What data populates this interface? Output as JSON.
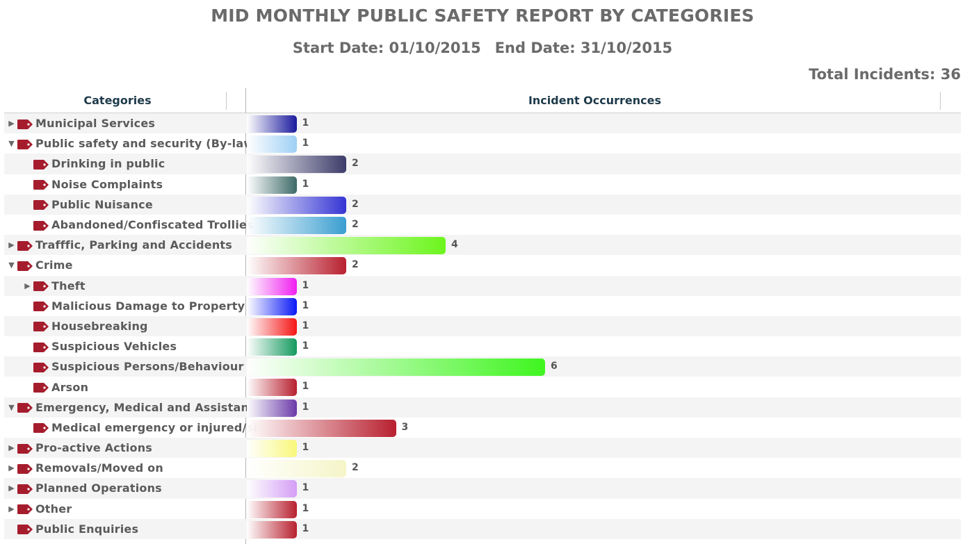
{
  "header": {
    "title": "MID MONTHLY PUBLIC SAFETY REPORT BY CATEGORIES",
    "start_date": "Start Date: 01/10/2015",
    "end_date": "End Date: 31/10/2015",
    "total": "Total Incidents: 36"
  },
  "columns": {
    "categories": "Categories",
    "occurrences": "Incident Occurrences"
  },
  "chart_data": {
    "type": "bar",
    "orientation": "horizontal",
    "xlim": [
      0,
      18
    ],
    "categories": [
      "Municipal Services",
      "Public safety and security (By-laws)",
      "Drinking in public",
      "Noise Complaints",
      "Public Nuisance",
      "Abandoned/Confiscated Trollies",
      "Trafffic, Parking and Accidents",
      "Crime",
      "Theft",
      "Malicious Damage to Property",
      "Housebreaking",
      "Suspicious Vehicles",
      "Suspicious Persons/Behaviour",
      "Arson",
      "Emergency, Medical and Assistance",
      "Medical emergency or injured/si",
      "Pro-active Actions",
      "Removals/Moved on",
      "Planned Operations",
      "Other",
      "Public Enquiries"
    ],
    "values": [
      1,
      1,
      2,
      1,
      2,
      2,
      4,
      2,
      1,
      1,
      1,
      1,
      6,
      1,
      1,
      3,
      1,
      2,
      1,
      1,
      1
    ],
    "indent": [
      0,
      0,
      1,
      1,
      1,
      1,
      0,
      0,
      1,
      1,
      1,
      1,
      1,
      1,
      0,
      1,
      0,
      0,
      0,
      0,
      0
    ],
    "expander": [
      "collapsed",
      "expanded",
      "none",
      "none",
      "none",
      "none",
      "collapsed",
      "expanded",
      "collapsed",
      "none",
      "none",
      "none",
      "none",
      "none",
      "expanded",
      "none",
      "collapsed",
      "collapsed",
      "collapsed",
      "collapsed",
      "none"
    ],
    "colors": [
      "#1a1a9e",
      "#9ecff5",
      "#3c3c6a",
      "#3d6a68",
      "#3535d4",
      "#3a9ed0",
      "#6cf51c",
      "#b8202f",
      "#f01ff0",
      "#0a18f5",
      "#f51414",
      "#149a5e",
      "#3ff51f",
      "#b8202f",
      "#6a3aa8",
      "#b8202f",
      "#f8f87a",
      "#f5f5c8",
      "#d49ef5",
      "#b8202f",
      "#b8202f"
    ]
  }
}
